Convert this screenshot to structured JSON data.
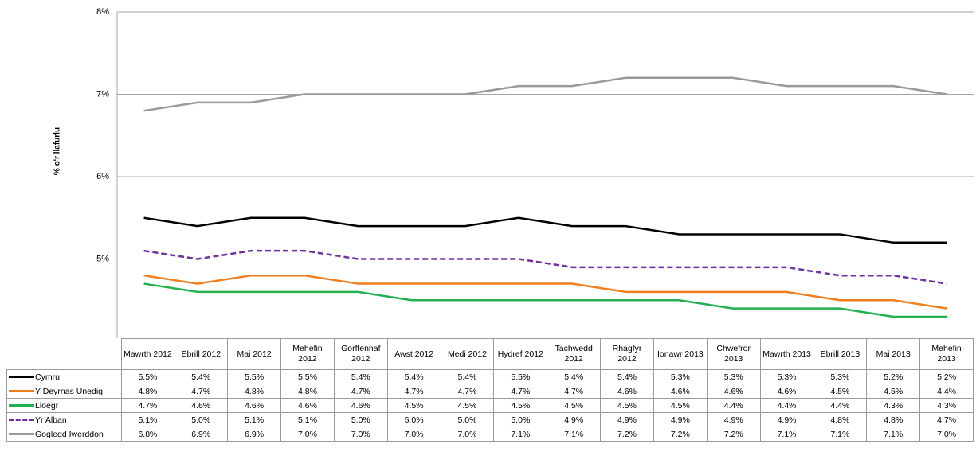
{
  "chart_data": {
    "type": "line",
    "y_label": "% o'r llafurlu",
    "categories": [
      "Mawrth 2012",
      "Ebrill 2012",
      "Mai 2012",
      "Mehefin 2012",
      "Gorffennaf 2012",
      "Awst 2012",
      "Medi 2012",
      "Hydref 2012",
      "Tachwedd 2012",
      "Rhagfyr 2012",
      "Ionawr 2013",
      "Chwefror 2013",
      "Mawrth 2013",
      "Ebrill 2013",
      "Mai 2013",
      "Mehefin 2013"
    ],
    "ylim": [
      4,
      8
    ],
    "yticks": [
      {
        "value": 5,
        "label": "5%"
      },
      {
        "value": 6,
        "label": "6%"
      },
      {
        "value": 7,
        "label": "7%"
      },
      {
        "value": 8,
        "label": "8%"
      }
    ],
    "grid": true,
    "series": [
      {
        "name": "Cymru",
        "color": "#000000",
        "dashed": false,
        "values": [
          5.5,
          5.4,
          5.5,
          5.5,
          5.4,
          5.4,
          5.4,
          5.5,
          5.4,
          5.4,
          5.3,
          5.3,
          5.3,
          5.3,
          5.2,
          5.2
        ],
        "value_labels": [
          "5.5%",
          "5.4%",
          "5.5%",
          "5.5%",
          "5.4%",
          "5.4%",
          "5.4%",
          "5.5%",
          "5.4%",
          "5.4%",
          "5.3%",
          "5.3%",
          "5.3%",
          "5.3%",
          "5.2%",
          "5.2%"
        ]
      },
      {
        "name": "Y Deyrnas Unedig",
        "color": "#f07d1e",
        "dashed": false,
        "values": [
          4.8,
          4.7,
          4.8,
          4.8,
          4.7,
          4.7,
          4.7,
          4.7,
          4.7,
          4.6,
          4.6,
          4.6,
          4.6,
          4.5,
          4.5,
          4.4
        ],
        "value_labels": [
          "4.8%",
          "4.7%",
          "4.8%",
          "4.8%",
          "4.7%",
          "4.7%",
          "4.7%",
          "4.7%",
          "4.7%",
          "4.6%",
          "4.6%",
          "4.6%",
          "4.6%",
          "4.5%",
          "4.5%",
          "4.4%"
        ]
      },
      {
        "name": "Lloegr",
        "color": "#22b14c",
        "dashed": false,
        "values": [
          4.7,
          4.6,
          4.6,
          4.6,
          4.6,
          4.5,
          4.5,
          4.5,
          4.5,
          4.5,
          4.5,
          4.4,
          4.4,
          4.4,
          4.3,
          4.3
        ],
        "value_labels": [
          "4.7%",
          "4.6%",
          "4.6%",
          "4.6%",
          "4.6%",
          "4.5%",
          "4.5%",
          "4.5%",
          "4.5%",
          "4.5%",
          "4.5%",
          "4.4%",
          "4.4%",
          "4.4%",
          "4.3%",
          "4.3%"
        ]
      },
      {
        "name": "Yr Alban",
        "color": "#7030a0",
        "dashed": true,
        "values": [
          5.1,
          5.0,
          5.1,
          5.1,
          5.0,
          5.0,
          5.0,
          5.0,
          4.9,
          4.9,
          4.9,
          4.9,
          4.9,
          4.8,
          4.8,
          4.7
        ],
        "value_labels": [
          "5.1%",
          "5.0%",
          "5.1%",
          "5.1%",
          "5.0%",
          "5.0%",
          "5.0%",
          "5.0%",
          "4.9%",
          "4.9%",
          "4.9%",
          "4.9%",
          "4.9%",
          "4.8%",
          "4.8%",
          "4.7%"
        ]
      },
      {
        "name": "Gogledd Iwerddon",
        "color": "#999999",
        "dashed": false,
        "values": [
          6.8,
          6.9,
          6.9,
          7.0,
          7.0,
          7.0,
          7.0,
          7.1,
          7.1,
          7.2,
          7.2,
          7.2,
          7.1,
          7.1,
          7.1,
          7.0
        ],
        "value_labels": [
          "6.8%",
          "6.9%",
          "6.9%",
          "7.0%",
          "7.0%",
          "7.0%",
          "7.0%",
          "7.1%",
          "7.1%",
          "7.2%",
          "7.2%",
          "7.2%",
          "7.1%",
          "7.1%",
          "7.1%",
          "7.0%"
        ]
      }
    ]
  }
}
